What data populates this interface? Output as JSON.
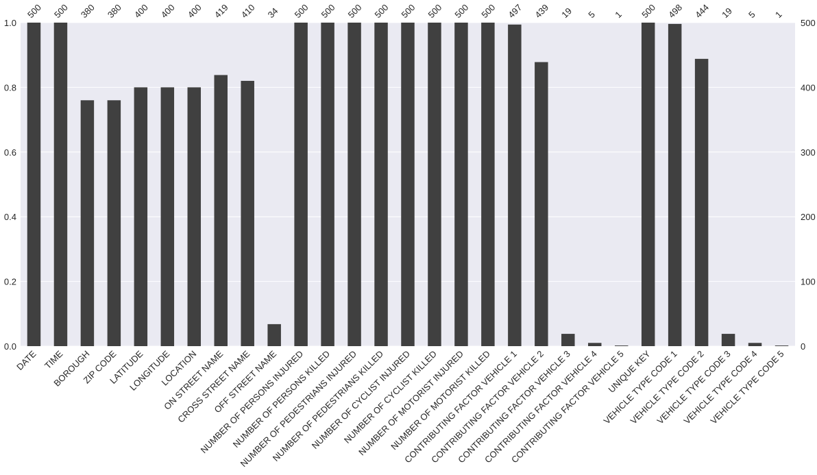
{
  "chart_data": {
    "type": "bar",
    "categories": [
      "DATE",
      "TIME",
      "BOROUGH",
      "ZIP CODE",
      "LATITUDE",
      "LONGITUDE",
      "LOCATION",
      "ON STREET NAME",
      "CROSS STREET NAME",
      "OFF STREET NAME",
      "NUMBER OF PERSONS INJURED",
      "NUMBER OF PERSONS KILLED",
      "NUMBER OF PEDESTRIANS INJURED",
      "NUMBER OF PEDESTRIANS KILLED",
      "NUMBER OF CYCLIST INJURED",
      "NUMBER OF CYCLIST KILLED",
      "NUMBER OF MOTORIST INJURED",
      "NUMBER OF MOTORIST KILLED",
      "CONTRIBUTING FACTOR VEHICLE 1",
      "CONTRIBUTING FACTOR VEHICLE 2",
      "CONTRIBUTING FACTOR VEHICLE 3",
      "CONTRIBUTING FACTOR VEHICLE 4",
      "CONTRIBUTING FACTOR VEHICLE 5",
      "UNIQUE KEY",
      "VEHICLE TYPE CODE 1",
      "VEHICLE TYPE CODE 2",
      "VEHICLE TYPE CODE 3",
      "VEHICLE TYPE CODE 4",
      "VEHICLE TYPE CODE 5"
    ],
    "values": [
      500,
      500,
      380,
      380,
      400,
      400,
      400,
      419,
      410,
      34,
      500,
      500,
      500,
      500,
      500,
      500,
      500,
      500,
      497,
      439,
      19,
      5,
      1,
      500,
      498,
      444,
      19,
      5,
      1
    ],
    "axis": "y2",
    "color": "#404040",
    "ylim": [
      0,
      1
    ],
    "yticks": [
      {
        "value": 0,
        "label": "0.0"
      },
      0.2,
      0.4,
      0.6,
      0.8,
      {
        "value": 1,
        "label": "1.0"
      }
    ],
    "y2lim": [
      0,
      500
    ],
    "y2ticks": [
      0,
      100,
      200,
      300,
      400,
      500
    ],
    "grid": true
  }
}
